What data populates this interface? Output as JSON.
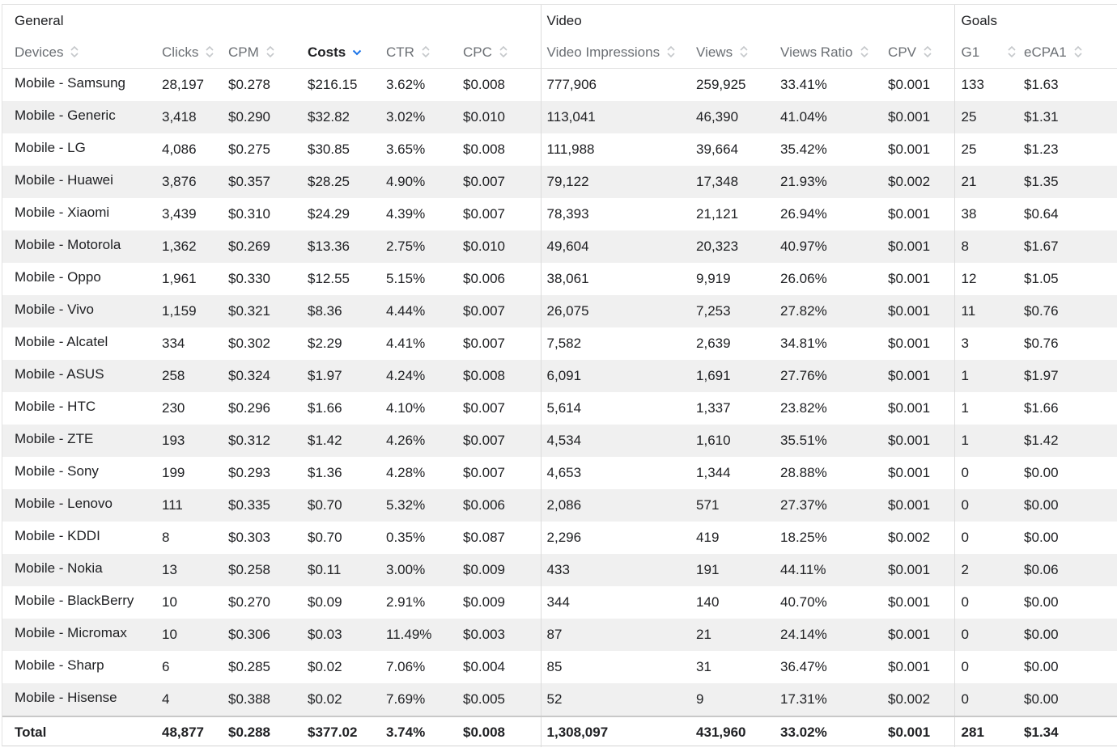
{
  "groups": {
    "general": "General",
    "video": "Video",
    "goals": "Goals"
  },
  "columns": {
    "devices": "Devices",
    "clicks": "Clicks",
    "cpm": "CPM",
    "costs": "Costs",
    "ctr": "CTR",
    "cpc": "CPC",
    "video_impressions": "Video Impressions",
    "views": "Views",
    "views_ratio": "Views Ratio",
    "cpv": "CPV",
    "g1": "G1",
    "ecpa1": "eCPA1"
  },
  "sorted_column": "costs",
  "sort_direction": "descending",
  "rows": [
    {
      "device": "Mobile - Samsung",
      "clicks": "28,197",
      "cpm": "$0.278",
      "costs": "$216.15",
      "ctr": "3.62%",
      "cpc": "$0.008",
      "video_impressions": "777,906",
      "views": "259,925",
      "views_ratio": "33.41%",
      "cpv": "$0.001",
      "g1": "133",
      "ecpa1": "$1.63"
    },
    {
      "device": "Mobile - Generic",
      "clicks": "3,418",
      "cpm": "$0.290",
      "costs": "$32.82",
      "ctr": "3.02%",
      "cpc": "$0.010",
      "video_impressions": "113,041",
      "views": "46,390",
      "views_ratio": "41.04%",
      "cpv": "$0.001",
      "g1": "25",
      "ecpa1": "$1.31"
    },
    {
      "device": "Mobile - LG",
      "clicks": "4,086",
      "cpm": "$0.275",
      "costs": "$30.85",
      "ctr": "3.65%",
      "cpc": "$0.008",
      "video_impressions": "111,988",
      "views": "39,664",
      "views_ratio": "35.42%",
      "cpv": "$0.001",
      "g1": "25",
      "ecpa1": "$1.23"
    },
    {
      "device": "Mobile - Huawei",
      "clicks": "3,876",
      "cpm": "$0.357",
      "costs": "$28.25",
      "ctr": "4.90%",
      "cpc": "$0.007",
      "video_impressions": "79,122",
      "views": "17,348",
      "views_ratio": "21.93%",
      "cpv": "$0.002",
      "g1": "21",
      "ecpa1": "$1.35"
    },
    {
      "device": "Mobile - Xiaomi",
      "clicks": "3,439",
      "cpm": "$0.310",
      "costs": "$24.29",
      "ctr": "4.39%",
      "cpc": "$0.007",
      "video_impressions": "78,393",
      "views": "21,121",
      "views_ratio": "26.94%",
      "cpv": "$0.001",
      "g1": "38",
      "ecpa1": "$0.64"
    },
    {
      "device": "Mobile - Motorola",
      "clicks": "1,362",
      "cpm": "$0.269",
      "costs": "$13.36",
      "ctr": "2.75%",
      "cpc": "$0.010",
      "video_impressions": "49,604",
      "views": "20,323",
      "views_ratio": "40.97%",
      "cpv": "$0.001",
      "g1": "8",
      "ecpa1": "$1.67"
    },
    {
      "device": "Mobile - Oppo",
      "clicks": "1,961",
      "cpm": "$0.330",
      "costs": "$12.55",
      "ctr": "5.15%",
      "cpc": "$0.006",
      "video_impressions": "38,061",
      "views": "9,919",
      "views_ratio": "26.06%",
      "cpv": "$0.001",
      "g1": "12",
      "ecpa1": "$1.05"
    },
    {
      "device": "Mobile - Vivo",
      "clicks": "1,159",
      "cpm": "$0.321",
      "costs": "$8.36",
      "ctr": "4.44%",
      "cpc": "$0.007",
      "video_impressions": "26,075",
      "views": "7,253",
      "views_ratio": "27.82%",
      "cpv": "$0.001",
      "g1": "11",
      "ecpa1": "$0.76"
    },
    {
      "device": "Mobile - Alcatel",
      "clicks": "334",
      "cpm": "$0.302",
      "costs": "$2.29",
      "ctr": "4.41%",
      "cpc": "$0.007",
      "video_impressions": "7,582",
      "views": "2,639",
      "views_ratio": "34.81%",
      "cpv": "$0.001",
      "g1": "3",
      "ecpa1": "$0.76"
    },
    {
      "device": "Mobile - ASUS",
      "clicks": "258",
      "cpm": "$0.324",
      "costs": "$1.97",
      "ctr": "4.24%",
      "cpc": "$0.008",
      "video_impressions": "6,091",
      "views": "1,691",
      "views_ratio": "27.76%",
      "cpv": "$0.001",
      "g1": "1",
      "ecpa1": "$1.97"
    },
    {
      "device": "Mobile - HTC",
      "clicks": "230",
      "cpm": "$0.296",
      "costs": "$1.66",
      "ctr": "4.10%",
      "cpc": "$0.007",
      "video_impressions": "5,614",
      "views": "1,337",
      "views_ratio": "23.82%",
      "cpv": "$0.001",
      "g1": "1",
      "ecpa1": "$1.66"
    },
    {
      "device": "Mobile - ZTE",
      "clicks": "193",
      "cpm": "$0.312",
      "costs": "$1.42",
      "ctr": "4.26%",
      "cpc": "$0.007",
      "video_impressions": "4,534",
      "views": "1,610",
      "views_ratio": "35.51%",
      "cpv": "$0.001",
      "g1": "1",
      "ecpa1": "$1.42"
    },
    {
      "device": "Mobile - Sony",
      "clicks": "199",
      "cpm": "$0.293",
      "costs": "$1.36",
      "ctr": "4.28%",
      "cpc": "$0.007",
      "video_impressions": "4,653",
      "views": "1,344",
      "views_ratio": "28.88%",
      "cpv": "$0.001",
      "g1": "0",
      "ecpa1": "$0.00"
    },
    {
      "device": "Mobile - Lenovo",
      "clicks": "111",
      "cpm": "$0.335",
      "costs": "$0.70",
      "ctr": "5.32%",
      "cpc": "$0.006",
      "video_impressions": "2,086",
      "views": "571",
      "views_ratio": "27.37%",
      "cpv": "$0.001",
      "g1": "0",
      "ecpa1": "$0.00"
    },
    {
      "device": "Mobile - KDDI",
      "clicks": "8",
      "cpm": "$0.303",
      "costs": "$0.70",
      "ctr": "0.35%",
      "cpc": "$0.087",
      "video_impressions": "2,296",
      "views": "419",
      "views_ratio": "18.25%",
      "cpv": "$0.002",
      "g1": "0",
      "ecpa1": "$0.00"
    },
    {
      "device": "Mobile - Nokia",
      "clicks": "13",
      "cpm": "$0.258",
      "costs": "$0.11",
      "ctr": "3.00%",
      "cpc": "$0.009",
      "video_impressions": "433",
      "views": "191",
      "views_ratio": "44.11%",
      "cpv": "$0.001",
      "g1": "2",
      "ecpa1": "$0.06"
    },
    {
      "device": "Mobile - BlackBerry",
      "clicks": "10",
      "cpm": "$0.270",
      "costs": "$0.09",
      "ctr": "2.91%",
      "cpc": "$0.009",
      "video_impressions": "344",
      "views": "140",
      "views_ratio": "40.70%",
      "cpv": "$0.001",
      "g1": "0",
      "ecpa1": "$0.00"
    },
    {
      "device": "Mobile - Micromax",
      "clicks": "10",
      "cpm": "$0.306",
      "costs": "$0.03",
      "ctr": "11.49%",
      "cpc": "$0.003",
      "video_impressions": "87",
      "views": "21",
      "views_ratio": "24.14%",
      "cpv": "$0.001",
      "g1": "0",
      "ecpa1": "$0.00"
    },
    {
      "device": "Mobile - Sharp",
      "clicks": "6",
      "cpm": "$0.285",
      "costs": "$0.02",
      "ctr": "7.06%",
      "cpc": "$0.004",
      "video_impressions": "85",
      "views": "31",
      "views_ratio": "36.47%",
      "cpv": "$0.001",
      "g1": "0",
      "ecpa1": "$0.00"
    },
    {
      "device": "Mobile - Hisense",
      "clicks": "4",
      "cpm": "$0.388",
      "costs": "$0.02",
      "ctr": "7.69%",
      "cpc": "$0.005",
      "video_impressions": "52",
      "views": "9",
      "views_ratio": "17.31%",
      "cpv": "$0.002",
      "g1": "0",
      "ecpa1": "$0.00"
    }
  ],
  "total": {
    "label": "Total",
    "clicks": "48,877",
    "cpm": "$0.288",
    "costs": "$377.02",
    "ctr": "3.74%",
    "cpc": "$0.008",
    "video_impressions": "1,308,097",
    "views": "431,960",
    "views_ratio": "33.02%",
    "cpv": "$0.001",
    "g1": "281",
    "ecpa1": "$1.34"
  },
  "colors": {
    "accent": "#1a73e8",
    "header_text": "#6b6f74",
    "row_stripe": "#f0f0f0"
  }
}
